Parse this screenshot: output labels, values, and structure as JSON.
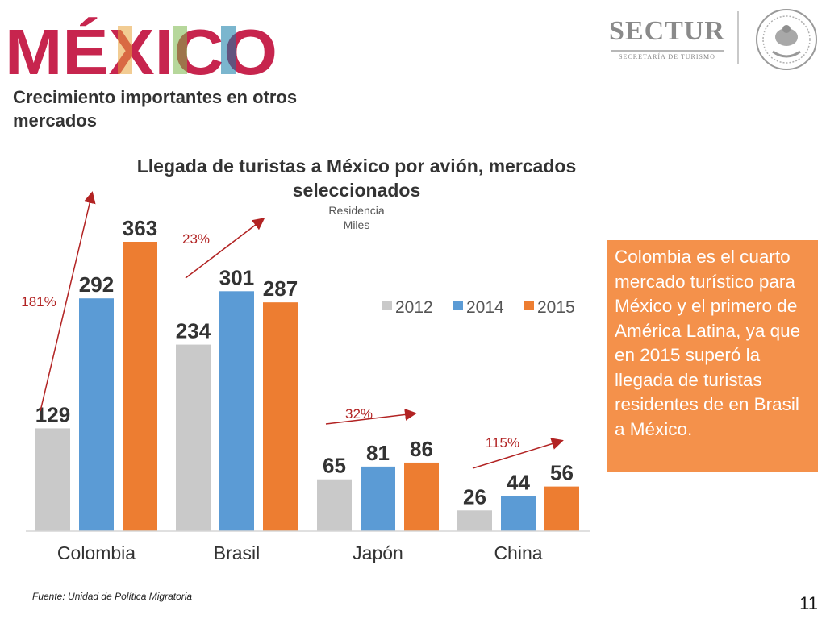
{
  "header": {
    "logo_text": "MÉXICO",
    "subtitle": "Crecimiento importantes en otros mercados",
    "sectur_name": "SECTUR",
    "sectur_sub": "SECRETARÍA DE TURISMO"
  },
  "chart_data": {
    "type": "bar",
    "title": "Llegada de turistas a México por avión, mercados seleccionados",
    "subtitle_lines": [
      "Residencia",
      "Miles"
    ],
    "categories": [
      "Colombia",
      "Brasil",
      "Japón",
      "China"
    ],
    "series": [
      {
        "name": "2012",
        "color": "#c9c9c9",
        "values": [
          129,
          234,
          65,
          26
        ]
      },
      {
        "name": "2014",
        "color": "#5b9bd5",
        "values": [
          292,
          301,
          81,
          44
        ]
      },
      {
        "name": "2015",
        "color": "#ed7d31",
        "values": [
          363,
          287,
          86,
          56
        ]
      }
    ],
    "ylim": [
      0,
      363
    ],
    "legend": "right",
    "growth_annotations": [
      {
        "category": "Colombia",
        "label": "181%"
      },
      {
        "category": "Brasil",
        "label": "23%"
      },
      {
        "category": "Japón",
        "label": "32%"
      },
      {
        "category": "China",
        "label": "115%"
      }
    ]
  },
  "callout": {
    "text": "Colombia es el cuarto mercado turístico para México y el primero de América Latina, ya que en 2015 superó la llegada de turistas residentes de en Brasil a México."
  },
  "footer": {
    "source": "Fuente: Unidad de Política Migratoria",
    "page": "11"
  },
  "colors": {
    "callout_bg": "#f4914b",
    "arrow": "#b22323"
  }
}
